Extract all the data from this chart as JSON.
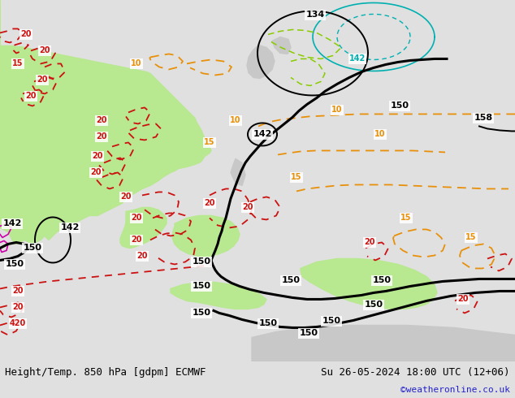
{
  "title_left": "Height/Temp. 850 hPa [gdpm] ECMWF",
  "title_right": "Su 26-05-2024 18:00 UTC (12+06)",
  "copyright": "©weatheronline.co.uk",
  "bg_color": "#e0e0e0",
  "map_bg_color": "#e8e8e8",
  "fig_width": 6.34,
  "fig_height": 4.9,
  "dpi": 100,
  "title_fontsize": 9,
  "copyright_fontsize": 8,
  "copyright_color": "#2222cc",
  "green_color": "#b8e890",
  "orange_color": "#e8900a",
  "red_color": "#cc1111",
  "black_color": "#000000",
  "cyan_color": "#00b0b0",
  "lime_color": "#88cc00",
  "magenta_color": "#cc00aa",
  "gray_land_color": "#c8c8c8",
  "white_water_color": "#f0f0f0"
}
